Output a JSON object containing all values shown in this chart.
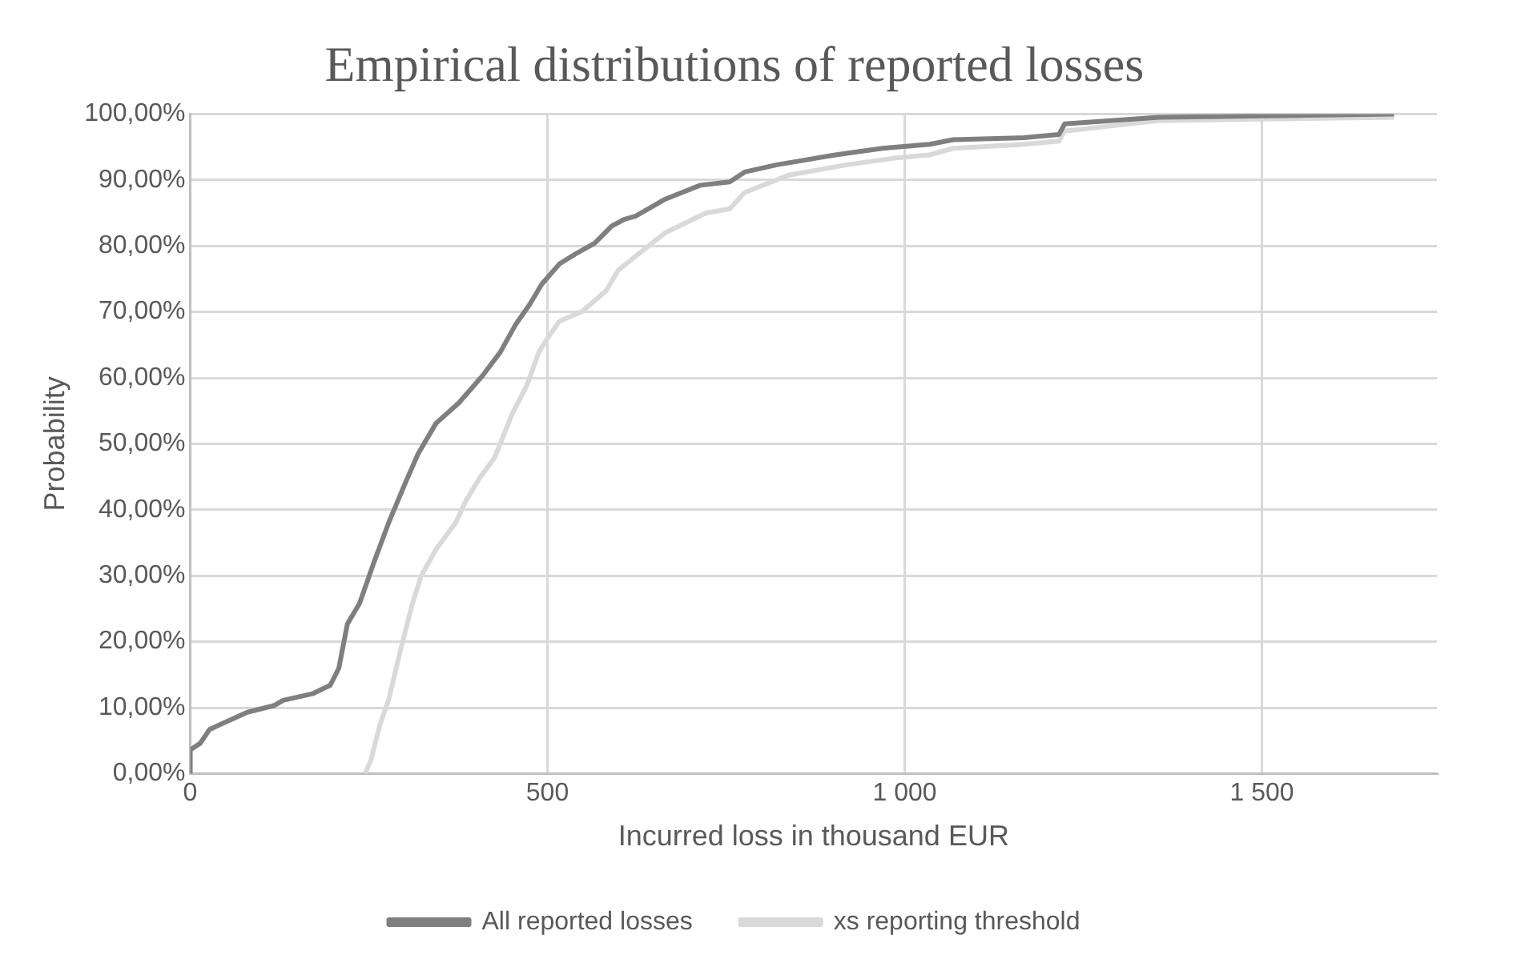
{
  "chart_data": {
    "type": "line",
    "title": "Empirical distributions of reported losses",
    "xlabel": "Incurred loss in thousand EUR",
    "ylabel": "Probability",
    "xlim": [
      0,
      1745
    ],
    "xticks": [
      0,
      500,
      {
        "value": 1000,
        "label": "1 000"
      },
      {
        "value": 1500,
        "label": "1 500"
      }
    ],
    "ylim": [
      0,
      100
    ],
    "yticks": [
      {
        "value": 0,
        "label": "0,00%"
      },
      {
        "value": 10,
        "label": "10,00%"
      },
      {
        "value": 20,
        "label": "20,00%"
      },
      {
        "value": 30,
        "label": "30,00%"
      },
      {
        "value": 40,
        "label": "40,00%"
      },
      {
        "value": 50,
        "label": "50,00%"
      },
      {
        "value": 60,
        "label": "60,00%"
      },
      {
        "value": 70,
        "label": "70,00%"
      },
      {
        "value": 80,
        "label": "80,00%"
      },
      {
        "value": 90,
        "label": "90,00%"
      },
      {
        "value": 100,
        "label": "100,00%"
      }
    ],
    "grid": true,
    "legend": "bottom",
    "marker": "none",
    "line_style": "solid",
    "series": [
      {
        "name": "All reported losses",
        "color": "#7f7f7f",
        "x": [
          0,
          0,
          14,
          27,
          47,
          80,
          117,
          130,
          171,
          196,
          208,
          220,
          237,
          257,
          278,
          302,
          319,
          344,
          376,
          409,
          434,
          455,
          475,
          492,
          517,
          541,
          566,
          590,
          607,
          623,
          665,
          714,
          755,
          776,
          821,
          903,
          969,
          1035,
          1068,
          1167,
          1216,
          1224,
          1356,
          1685
        ],
        "values": [
          0,
          3.6,
          4.6,
          6.7,
          7.7,
          9.3,
          10.3,
          11.1,
          12.1,
          13.4,
          16,
          22.7,
          25.8,
          32,
          38.1,
          44.3,
          48.5,
          53.1,
          56.2,
          60.3,
          63.9,
          68,
          71.1,
          74.2,
          77.3,
          78.9,
          80.4,
          83,
          84,
          84.5,
          87.1,
          89.2,
          89.7,
          91.2,
          92.3,
          93.8,
          94.8,
          95.4,
          96.1,
          96.4,
          96.9,
          98.5,
          99.5,
          100
        ]
      },
      {
        "name": "xs reporting threshold",
        "color": "#d9d9d9",
        "x": [
          245,
          253,
          265,
          278,
          294,
          311,
          323,
          344,
          372,
          385,
          405,
          426,
          451,
          471,
          488,
          500,
          517,
          549,
          582,
          599,
          623,
          665,
          722,
          755,
          776,
          837,
          919,
          985,
          1035,
          1068,
          1167,
          1216,
          1224,
          1356,
          1685
        ],
        "values": [
          0,
          2.1,
          7.2,
          11.3,
          18.6,
          25.8,
          29.9,
          34,
          38.1,
          41.2,
          44.8,
          47.9,
          54.6,
          58.8,
          63.9,
          66,
          68.6,
          70.1,
          73.2,
          76.3,
          78.4,
          82,
          85,
          85.6,
          88.1,
          90.7,
          92.3,
          93.3,
          93.8,
          94.8,
          95.4,
          95.9,
          97.4,
          99,
          99.5
        ]
      }
    ]
  }
}
